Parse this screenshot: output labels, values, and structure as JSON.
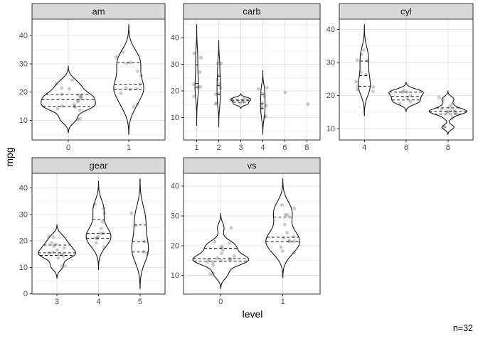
{
  "chart_data": {
    "type": "violin",
    "ylabel": "mpg",
    "xlabel": "level",
    "caption": "n=32",
    "quantiles": [
      0.25,
      0.5,
      0.75
    ],
    "legend": "none",
    "grid": "on",
    "facets": [
      {
        "label": "am",
        "row": 0,
        "col": 0,
        "categories": [
          "0",
          "1"
        ],
        "yticks": [
          10,
          20,
          30,
          40
        ],
        "groups": [
          [
            21.4,
            18.7,
            18.1,
            14.3,
            24.4,
            22.8,
            19.2,
            17.8,
            16.4,
            17.3,
            15.2,
            10.4,
            10.4,
            14.7,
            21.5,
            15.5,
            15.2,
            13.3,
            19.2
          ],
          [
            21,
            21,
            22.8,
            32.4,
            30.4,
            33.9,
            27.3,
            26,
            30.4,
            15.8,
            19.7,
            15,
            21.4
          ]
        ]
      },
      {
        "label": "carb",
        "row": 0,
        "col": 1,
        "categories": [
          "1",
          "2",
          "3",
          "4",
          "6",
          "8"
        ],
        "yticks": [
          10,
          20,
          30,
          40
        ],
        "groups": [
          [
            22.8,
            21.4,
            18.1,
            32.4,
            33.9,
            21.5,
            27.3
          ],
          [
            18.7,
            24.4,
            22.8,
            30.4,
            15.5,
            15.2,
            19.2,
            26,
            30.4,
            21.4
          ],
          [
            16.4,
            17.3,
            15.2
          ],
          [
            21,
            21,
            14.3,
            19.2,
            17.8,
            10.4,
            10.4,
            14.7,
            13.3,
            15.8
          ],
          [
            19.7
          ],
          [
            15
          ]
        ]
      },
      {
        "label": "cyl",
        "row": 0,
        "col": 2,
        "categories": [
          "4",
          "6",
          "8"
        ],
        "yticks": [
          10,
          20,
          30,
          40
        ],
        "groups": [
          [
            22.8,
            24.4,
            22.8,
            32.4,
            30.4,
            33.9,
            21.5,
            27.3,
            26,
            30.4,
            21.4
          ],
          [
            21,
            21,
            21.4,
            18.1,
            19.2,
            17.8,
            19.7
          ],
          [
            18.7,
            14.3,
            16.4,
            17.3,
            15.2,
            10.4,
            10.4,
            14.7,
            15.5,
            15.2,
            13.3,
            19.2,
            15.8,
            15
          ]
        ]
      },
      {
        "label": "gear",
        "row": 1,
        "col": 0,
        "categories": [
          "3",
          "4",
          "5"
        ],
        "yticks": [
          0,
          10,
          20,
          30,
          40
        ],
        "groups": [
          [
            21.4,
            18.7,
            18.1,
            14.3,
            16.4,
            17.3,
            15.2,
            10.4,
            10.4,
            14.7,
            21.5,
            15.5,
            15.2,
            13.3,
            19.2
          ],
          [
            21,
            21,
            22.8,
            24.4,
            22.8,
            19.2,
            17.8,
            32.4,
            30.4,
            33.9,
            27.3,
            21.4
          ],
          [
            26,
            30.4,
            15.8,
            19.7,
            15
          ]
        ]
      },
      {
        "label": "vs",
        "row": 1,
        "col": 1,
        "categories": [
          "0",
          "1"
        ],
        "yticks": [
          10,
          20,
          30,
          40
        ],
        "groups": [
          [
            21,
            21,
            18.7,
            14.3,
            16.4,
            17.3,
            15.2,
            10.4,
            10.4,
            14.7,
            15.5,
            15.2,
            13.3,
            19.2,
            26,
            15.8,
            19.7,
            15
          ],
          [
            22.8,
            21.4,
            18.1,
            24.4,
            22.8,
            19.2,
            17.8,
            32.4,
            30.4,
            33.9,
            21.5,
            27.3,
            30.4,
            21.4
          ]
        ]
      }
    ]
  },
  "theme": {
    "panel_bg": "#FFFFFF",
    "panel_border": "#333333",
    "strip_bg": "#D9D9D9",
    "strip_border": "#333333",
    "strip_text": "#1A1A1A",
    "grid_major": "#E4E4E4",
    "grid_minor": "#F2F2F2",
    "tick_mark": "#333333",
    "axis_text": "#4D4D4D",
    "violin_stroke": "#1A1A1A",
    "violin_fill": "#FFFFFF",
    "quantile_line": "#1A1A1A",
    "point_color": "#303030",
    "point_opacity": 0.25
  }
}
